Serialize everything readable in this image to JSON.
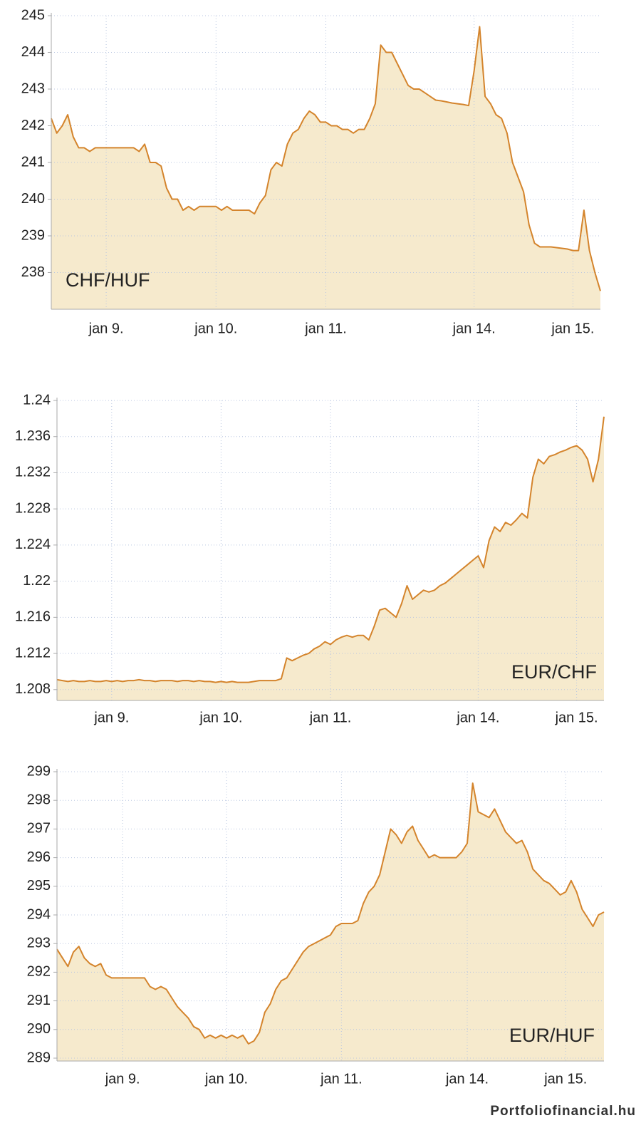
{
  "chart_data": [
    {
      "type": "area",
      "title": "CHF/HUF",
      "color": "#d4842c",
      "fill": "#f6eacd",
      "grid": true,
      "ylim": [
        237,
        245
      ],
      "yticks": [
        238,
        239,
        240,
        241,
        242,
        243,
        244,
        245
      ],
      "categories": [
        null,
        null,
        null,
        null,
        null,
        null,
        null,
        null,
        null,
        null,
        "jan 9.",
        null,
        null,
        null,
        null,
        null,
        null,
        null,
        null,
        null,
        null,
        null,
        null,
        null,
        null,
        null,
        null,
        null,
        null,
        null,
        "jan 10.",
        null,
        null,
        null,
        null,
        null,
        null,
        null,
        null,
        null,
        null,
        null,
        null,
        null,
        null,
        null,
        null,
        null,
        null,
        null,
        "jan 11.",
        null,
        null,
        null,
        null,
        null,
        null,
        null,
        null,
        null,
        null,
        null,
        null,
        null,
        null,
        null,
        null,
        null,
        null,
        null,
        null,
        null,
        null,
        null,
        null,
        null,
        null,
        "jan 14.",
        null,
        null,
        null,
        null,
        null,
        null,
        null,
        null,
        null,
        null,
        null,
        null,
        null,
        null,
        null,
        null,
        null,
        "jan 15.",
        null,
        null,
        null,
        null,
        null
      ],
      "values": [
        242.2,
        241.8,
        242.0,
        242.3,
        241.7,
        241.4,
        241.4,
        241.3,
        241.4,
        241.4,
        241.4,
        241.4,
        241.4,
        241.4,
        241.4,
        241.4,
        241.3,
        241.5,
        241.0,
        241.0,
        240.9,
        240.3,
        240.0,
        240.0,
        239.7,
        239.8,
        239.7,
        239.8,
        239.8,
        239.8,
        239.8,
        239.7,
        239.8,
        239.7,
        239.7,
        239.7,
        239.7,
        239.6,
        239.9,
        240.1,
        240.8,
        241.0,
        240.9,
        241.5,
        241.8,
        241.9,
        242.2,
        242.4,
        242.3,
        242.1,
        242.1,
        242.0,
        242.0,
        241.9,
        241.9,
        241.8,
        241.9,
        241.9,
        242.2,
        242.6,
        244.2,
        244.0,
        244.0,
        243.7,
        243.4,
        243.1,
        243.0,
        243.0,
        242.9,
        242.8,
        242.7,
        242.68,
        242.65,
        242.62,
        242.6,
        242.58,
        242.55,
        243.5,
        244.7,
        242.8,
        242.6,
        242.3,
        242.2,
        241.8,
        241.0,
        240.6,
        240.2,
        239.3,
        238.8,
        238.7,
        238.7,
        238.7,
        238.68,
        238.66,
        238.64,
        238.6,
        238.6,
        239.7,
        238.6,
        238.0,
        237.5
      ]
    },
    {
      "type": "area",
      "title": "EUR/CHF",
      "color": "#d4842c",
      "fill": "#f6eacd",
      "grid": true,
      "ylim": [
        1.2068,
        1.24
      ],
      "yticks": [
        1.208,
        1.212,
        1.216,
        1.22,
        1.224,
        1.228,
        1.232,
        1.236,
        1.24
      ],
      "categories": [
        null,
        null,
        null,
        null,
        null,
        null,
        null,
        null,
        null,
        null,
        "jan 9.",
        null,
        null,
        null,
        null,
        null,
        null,
        null,
        null,
        null,
        null,
        null,
        null,
        null,
        null,
        null,
        null,
        null,
        null,
        null,
        "jan 10.",
        null,
        null,
        null,
        null,
        null,
        null,
        null,
        null,
        null,
        null,
        null,
        null,
        null,
        null,
        null,
        null,
        null,
        null,
        null,
        "jan 11.",
        null,
        null,
        null,
        null,
        null,
        null,
        null,
        null,
        null,
        null,
        null,
        null,
        null,
        null,
        null,
        null,
        null,
        null,
        null,
        null,
        null,
        null,
        null,
        null,
        null,
        null,
        "jan 14.",
        null,
        null,
        null,
        null,
        null,
        null,
        null,
        null,
        null,
        null,
        null,
        null,
        null,
        null,
        null,
        null,
        null,
        "jan 15.",
        null,
        null,
        null,
        null,
        null
      ],
      "values": [
        1.2091,
        1.209,
        1.2089,
        1.209,
        1.2089,
        1.2089,
        1.209,
        1.2089,
        1.2089,
        1.209,
        1.2089,
        1.209,
        1.2089,
        1.209,
        1.209,
        1.2091,
        1.209,
        1.209,
        1.2089,
        1.209,
        1.209,
        1.209,
        1.2089,
        1.209,
        1.209,
        1.2089,
        1.209,
        1.2089,
        1.2089,
        1.2088,
        1.2089,
        1.2088,
        1.2089,
        1.2088,
        1.2088,
        1.2088,
        1.2089,
        1.209,
        1.209,
        1.209,
        1.209,
        1.2092,
        1.2115,
        1.2112,
        1.2115,
        1.2118,
        1.212,
        1.2125,
        1.2128,
        1.2133,
        1.213,
        1.2135,
        1.2138,
        1.214,
        1.2138,
        1.214,
        1.214,
        1.2135,
        1.215,
        1.2168,
        1.217,
        1.2165,
        1.216,
        1.2175,
        1.2195,
        1.218,
        1.2185,
        1.219,
        1.2188,
        1.219,
        1.2195,
        1.2198,
        1.2203,
        1.2208,
        1.2213,
        1.2218,
        1.2223,
        1.2228,
        1.2215,
        1.2245,
        1.226,
        1.2255,
        1.2265,
        1.2262,
        1.2268,
        1.2275,
        1.227,
        1.2315,
        1.2335,
        1.233,
        1.2338,
        1.234,
        1.2343,
        1.2345,
        1.2348,
        1.235,
        1.2345,
        1.2335,
        1.231,
        1.2335,
        1.2382
      ]
    },
    {
      "type": "area",
      "title": "EUR/HUF",
      "color": "#d4842c",
      "fill": "#f6eacd",
      "grid": true,
      "ylim": [
        288.9,
        299
      ],
      "yticks": [
        289,
        290,
        291,
        292,
        293,
        294,
        295,
        296,
        297,
        298,
        299
      ],
      "categories": [
        null,
        null,
        null,
        null,
        null,
        null,
        null,
        null,
        null,
        null,
        null,
        null,
        "jan 9.",
        null,
        null,
        null,
        null,
        null,
        null,
        null,
        null,
        null,
        null,
        null,
        null,
        null,
        null,
        null,
        null,
        null,
        null,
        "jan 10.",
        null,
        null,
        null,
        null,
        null,
        null,
        null,
        null,
        null,
        null,
        null,
        null,
        null,
        null,
        null,
        null,
        null,
        null,
        null,
        null,
        "jan 11.",
        null,
        null,
        null,
        null,
        null,
        null,
        null,
        null,
        null,
        null,
        null,
        null,
        null,
        null,
        null,
        null,
        null,
        null,
        null,
        null,
        null,
        null,
        "jan 14.",
        null,
        null,
        null,
        null,
        null,
        null,
        null,
        null,
        null,
        null,
        null,
        null,
        null,
        null,
        null,
        null,
        null,
        "jan 15.",
        null,
        null,
        null,
        null,
        null,
        null,
        null
      ],
      "values": [
        292.8,
        292.5,
        292.2,
        292.7,
        292.9,
        292.5,
        292.3,
        292.2,
        292.3,
        291.9,
        291.8,
        291.8,
        291.8,
        291.8,
        291.8,
        291.8,
        291.8,
        291.5,
        291.4,
        291.5,
        291.4,
        291.1,
        290.8,
        290.6,
        290.4,
        290.1,
        290.0,
        289.7,
        289.8,
        289.7,
        289.8,
        289.7,
        289.8,
        289.7,
        289.8,
        289.5,
        289.6,
        289.9,
        290.6,
        290.9,
        291.4,
        291.7,
        291.8,
        292.1,
        292.4,
        292.7,
        292.9,
        293.0,
        293.1,
        293.2,
        293.3,
        293.6,
        293.7,
        293.7,
        293.7,
        293.8,
        294.4,
        294.8,
        295.0,
        295.4,
        296.2,
        297.0,
        296.8,
        296.5,
        296.9,
        297.1,
        296.6,
        296.3,
        296.0,
        296.1,
        296.0,
        296.0,
        296.0,
        296.0,
        296.2,
        296.5,
        298.6,
        297.6,
        297.5,
        297.4,
        297.7,
        297.3,
        296.9,
        296.7,
        296.5,
        296.6,
        296.2,
        295.6,
        295.4,
        295.2,
        295.1,
        294.9,
        294.7,
        294.8,
        295.2,
        294.8,
        294.2,
        293.9,
        293.6,
        294.0,
        294.1
      ]
    }
  ],
  "source": "Portfoliofinancial.hu"
}
